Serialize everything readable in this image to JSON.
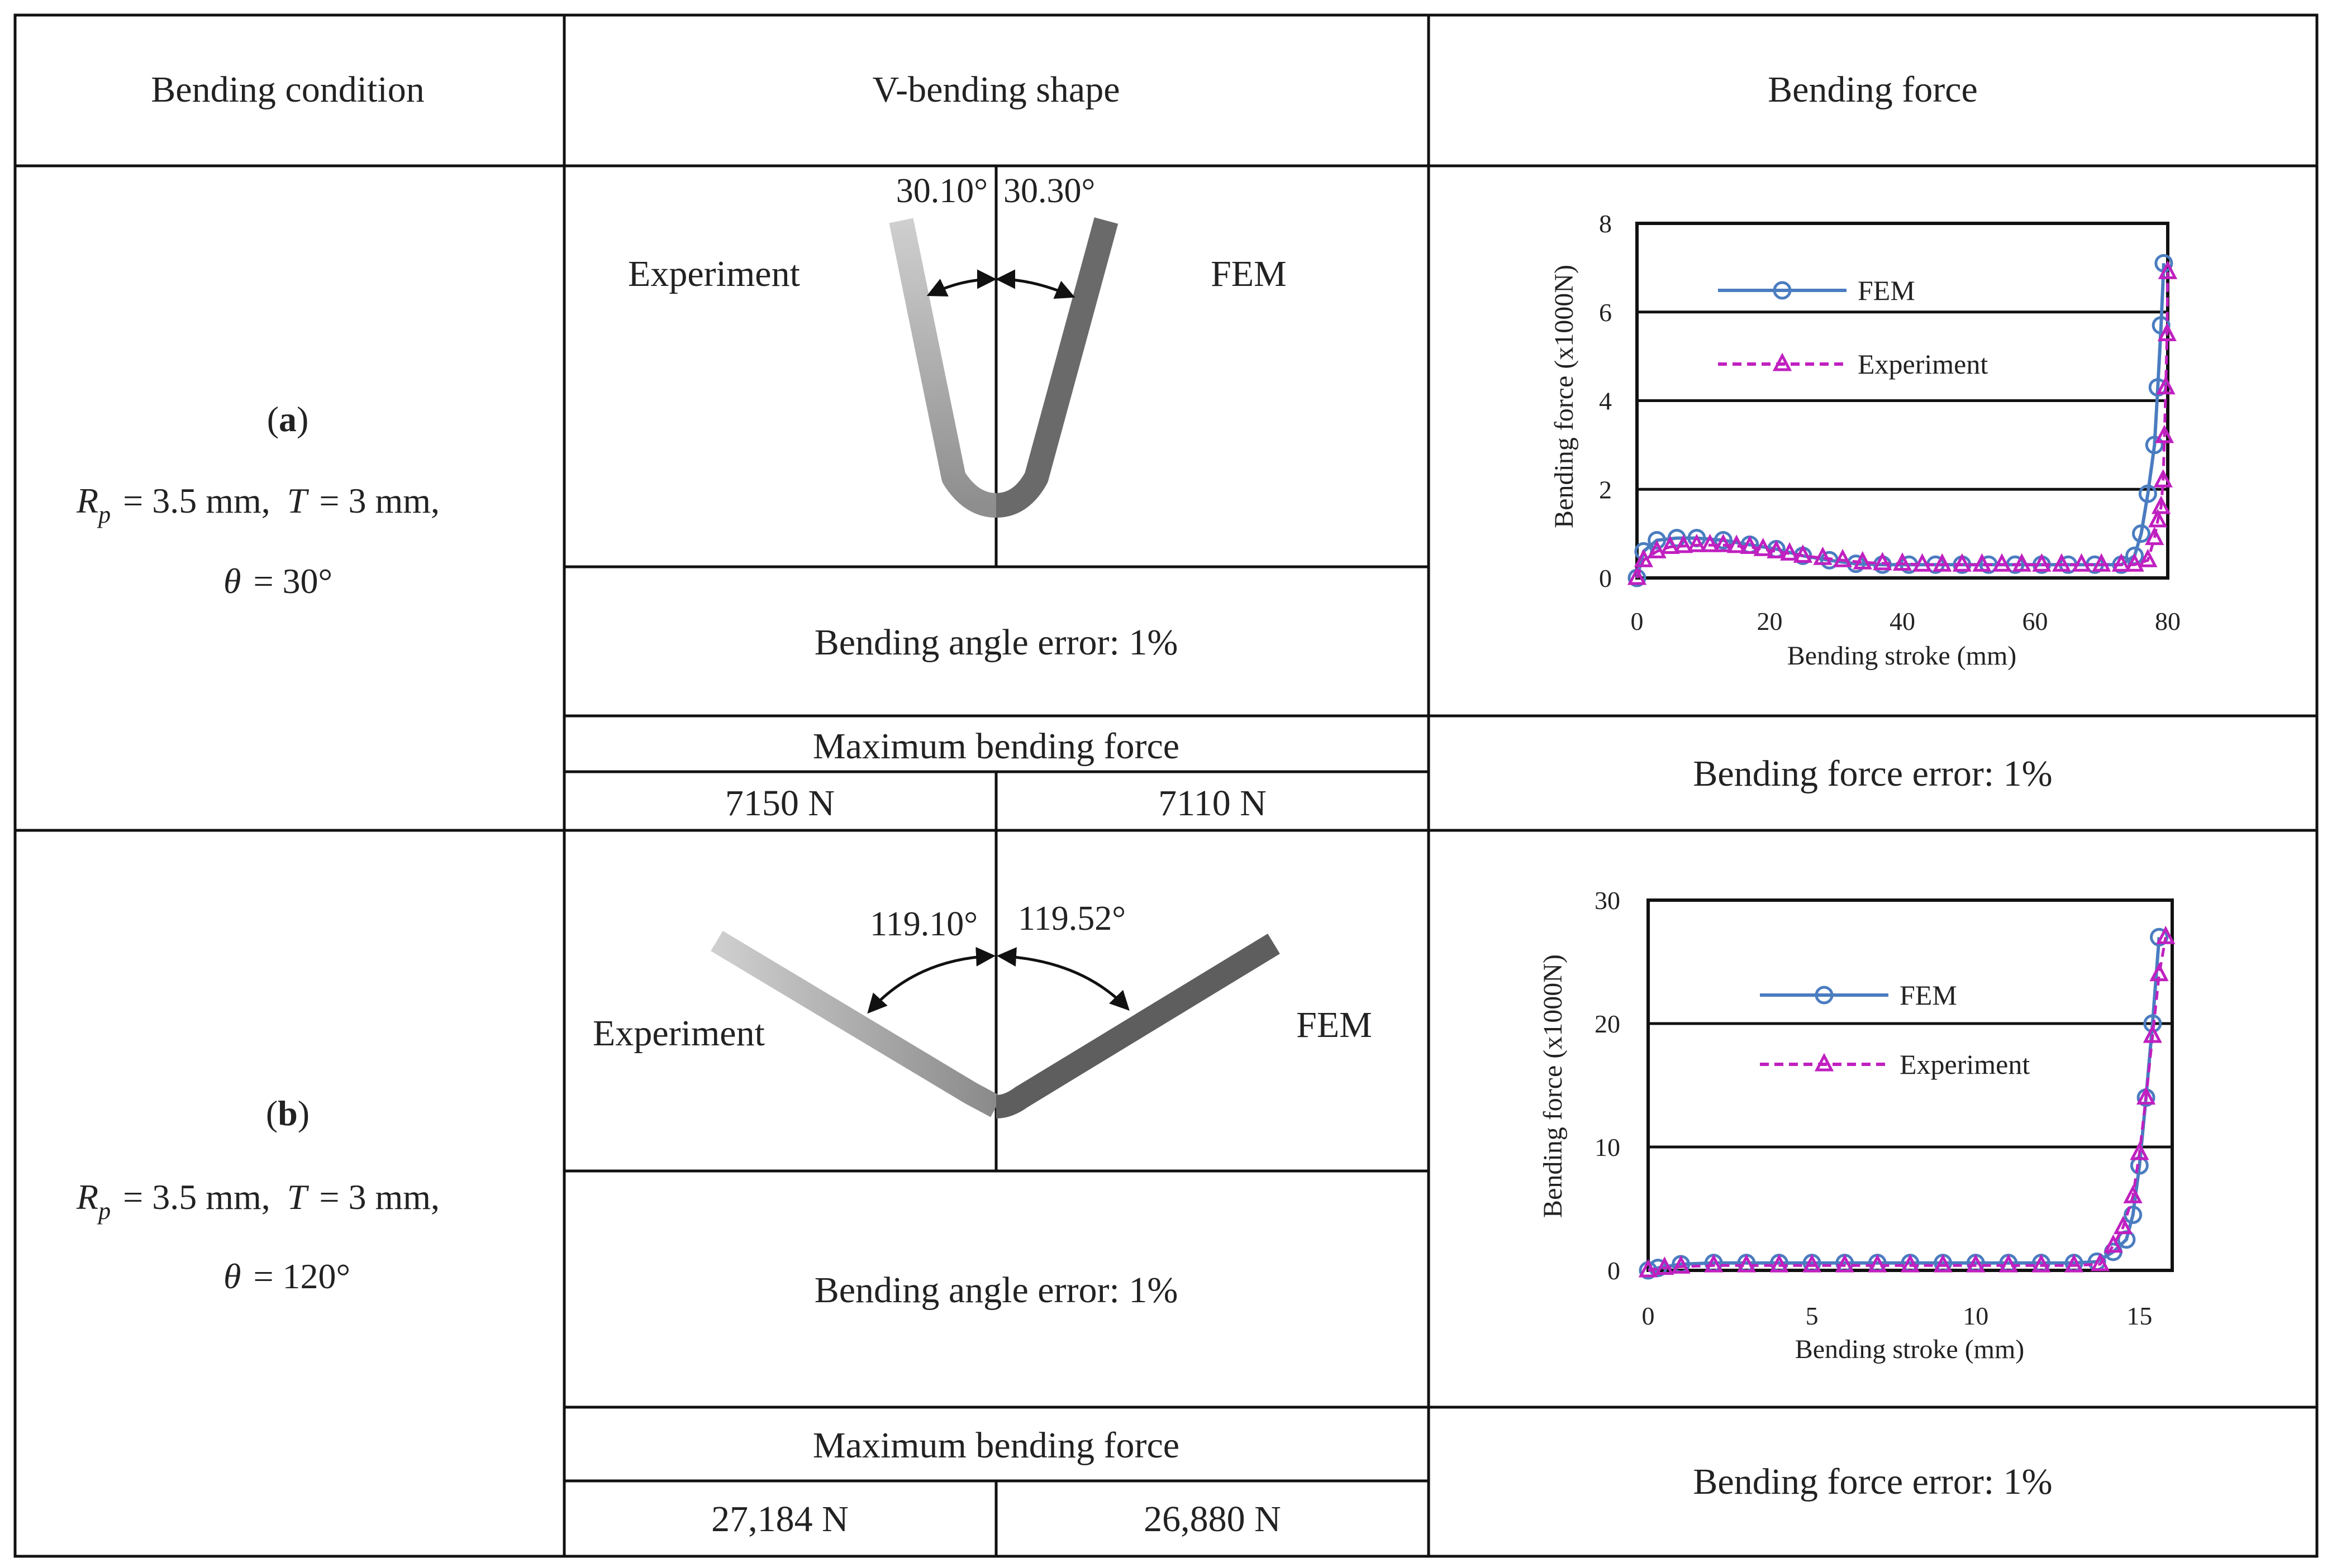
{
  "header": {
    "col1": "Bending condition",
    "col2": "V-bending shape",
    "col3": "Bending force"
  },
  "rows": [
    {
      "id": "a",
      "label": "a",
      "rp": "= 3.5 mm,",
      "t": "= 3 mm,",
      "theta": "= 30°",
      "angle_left": "30.10°",
      "angle_right": "30.30°",
      "left_label": "Experiment",
      "right_label": "FEM",
      "angle_error": "Bending angle error: 1%",
      "max_force_header": "Maximum bending force",
      "max_force_exp": "7150 N",
      "max_force_fem": "7110 N",
      "force_error": "Bending force error: 1%"
    },
    {
      "id": "b",
      "label": "b",
      "rp": "= 3.5 mm,",
      "t": "= 3 mm,",
      "theta": "= 120°",
      "angle_left": "119.10°",
      "angle_right": "119.52°",
      "left_label": "Experiment",
      "right_label": "FEM",
      "angle_error": "Bending angle error: 1%",
      "max_force_header": "Maximum bending force",
      "max_force_exp": "27,184 N",
      "max_force_fem": "26,880 N",
      "force_error": "Bending force error: 1%"
    }
  ],
  "symbols": {
    "rp_main": "R",
    "rp_sub": "p",
    "t": "T",
    "theta": "θ"
  },
  "colors": {
    "fem": "#4a7cc0",
    "experiment": "#c020c0"
  },
  "chart_data": [
    {
      "type": "line",
      "xlabel": "Bending stroke (mm)",
      "ylabel": "Bending force (x1000N)",
      "xlim": [
        0,
        80
      ],
      "ylim": [
        0,
        8
      ],
      "xticks": [
        0,
        20,
        40,
        60,
        80
      ],
      "yticks": [
        0,
        2,
        4,
        6,
        8
      ],
      "grid": "horizontal",
      "legend_position": "top-left",
      "series": [
        {
          "name": "FEM",
          "marker": "circle",
          "x": [
            0,
            1,
            3,
            6,
            9,
            13,
            17,
            21,
            25,
            29,
            33,
            37,
            41,
            45,
            49,
            53,
            57,
            61,
            65,
            69,
            73,
            75,
            76,
            77,
            78,
            78.5,
            79,
            79.4
          ],
          "y": [
            0,
            0.6,
            0.85,
            0.9,
            0.9,
            0.85,
            0.75,
            0.65,
            0.5,
            0.4,
            0.32,
            0.3,
            0.3,
            0.3,
            0.3,
            0.3,
            0.3,
            0.3,
            0.3,
            0.3,
            0.3,
            0.5,
            1.0,
            1.9,
            3.0,
            4.3,
            5.7,
            7.1
          ]
        },
        {
          "name": "Experiment",
          "marker": "triangle",
          "x": [
            0,
            1,
            3,
            5,
            7,
            9,
            11,
            13,
            15,
            17,
            19,
            21,
            23,
            25,
            28,
            31,
            34,
            37,
            40,
            43,
            46,
            49,
            52,
            55,
            58,
            61,
            64,
            67,
            70,
            73,
            75,
            77,
            78,
            78.5,
            79,
            79.3,
            79.5,
            79.7,
            79.9,
            80
          ],
          "y": [
            0,
            0.4,
            0.6,
            0.7,
            0.72,
            0.74,
            0.74,
            0.74,
            0.72,
            0.7,
            0.65,
            0.6,
            0.55,
            0.5,
            0.45,
            0.4,
            0.35,
            0.33,
            0.32,
            0.3,
            0.3,
            0.3,
            0.3,
            0.3,
            0.3,
            0.3,
            0.3,
            0.3,
            0.3,
            0.3,
            0.3,
            0.4,
            0.9,
            1.3,
            1.6,
            2.2,
            3.2,
            4.3,
            5.5,
            6.9
          ]
        }
      ]
    },
    {
      "type": "line",
      "xlabel": "Bending stroke (mm)",
      "ylabel": "Bending force (x1000N)",
      "xlim": [
        0,
        16
      ],
      "ylim": [
        0,
        30
      ],
      "xticks": [
        0,
        5,
        10,
        15
      ],
      "yticks": [
        0,
        10,
        20,
        30
      ],
      "grid": "horizontal",
      "legend_position": "top-left",
      "series": [
        {
          "name": "FEM",
          "marker": "circle",
          "x": [
            0,
            0.3,
            1,
            2,
            3,
            4,
            5,
            6,
            7,
            8,
            9,
            10,
            11,
            12,
            13,
            13.7,
            14.2,
            14.6,
            14.8,
            15,
            15.2,
            15.4,
            15.6
          ],
          "y": [
            0,
            0.2,
            0.5,
            0.6,
            0.6,
            0.6,
            0.6,
            0.6,
            0.6,
            0.6,
            0.6,
            0.6,
            0.6,
            0.6,
            0.6,
            0.7,
            1.5,
            2.5,
            4.5,
            8.5,
            14,
            20,
            27
          ]
        },
        {
          "name": "Experiment",
          "marker": "triangle",
          "x": [
            0,
            0.5,
            1,
            2,
            3,
            4,
            5,
            6,
            7,
            8,
            9,
            10,
            11,
            12,
            13,
            13.8,
            14.2,
            14.5,
            14.8,
            15,
            15.2,
            15.4,
            15.6,
            15.8
          ],
          "y": [
            0,
            0.2,
            0.3,
            0.4,
            0.4,
            0.4,
            0.4,
            0.4,
            0.4,
            0.4,
            0.4,
            0.4,
            0.4,
            0.4,
            0.4,
            0.5,
            2,
            3.5,
            6,
            9.5,
            14,
            19,
            24,
            27
          ]
        }
      ]
    }
  ]
}
